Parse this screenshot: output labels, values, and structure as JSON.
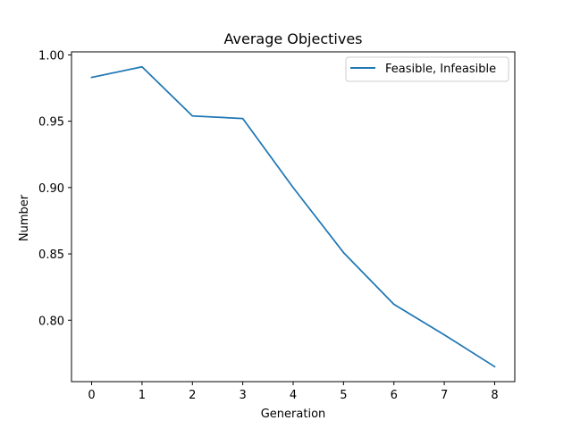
{
  "chart_data": {
    "type": "line",
    "title": "Average Objectives",
    "xlabel": "Generation",
    "ylabel": "Number",
    "x": [
      0,
      1,
      2,
      3,
      4,
      5,
      6,
      7,
      8
    ],
    "series": [
      {
        "name": "Feasible, Infeasible",
        "color": "#1f77b4",
        "values": [
          0.983,
          0.991,
          0.954,
          0.952,
          0.9,
          0.851,
          0.812,
          0.789,
          0.765
        ]
      }
    ],
    "xlim": [
      -0.4,
      8.4
    ],
    "ylim": [
      0.7537,
      1.0023
    ],
    "xticks": [
      0,
      1,
      2,
      3,
      4,
      5,
      6,
      7,
      8
    ],
    "yticks": [
      0.8,
      0.85,
      0.9,
      0.95,
      1.0
    ],
    "ytick_labels": [
      "0.80",
      "0.85",
      "0.90",
      "0.95",
      "1.00"
    ],
    "grid": false,
    "legend_position": "top-right"
  }
}
